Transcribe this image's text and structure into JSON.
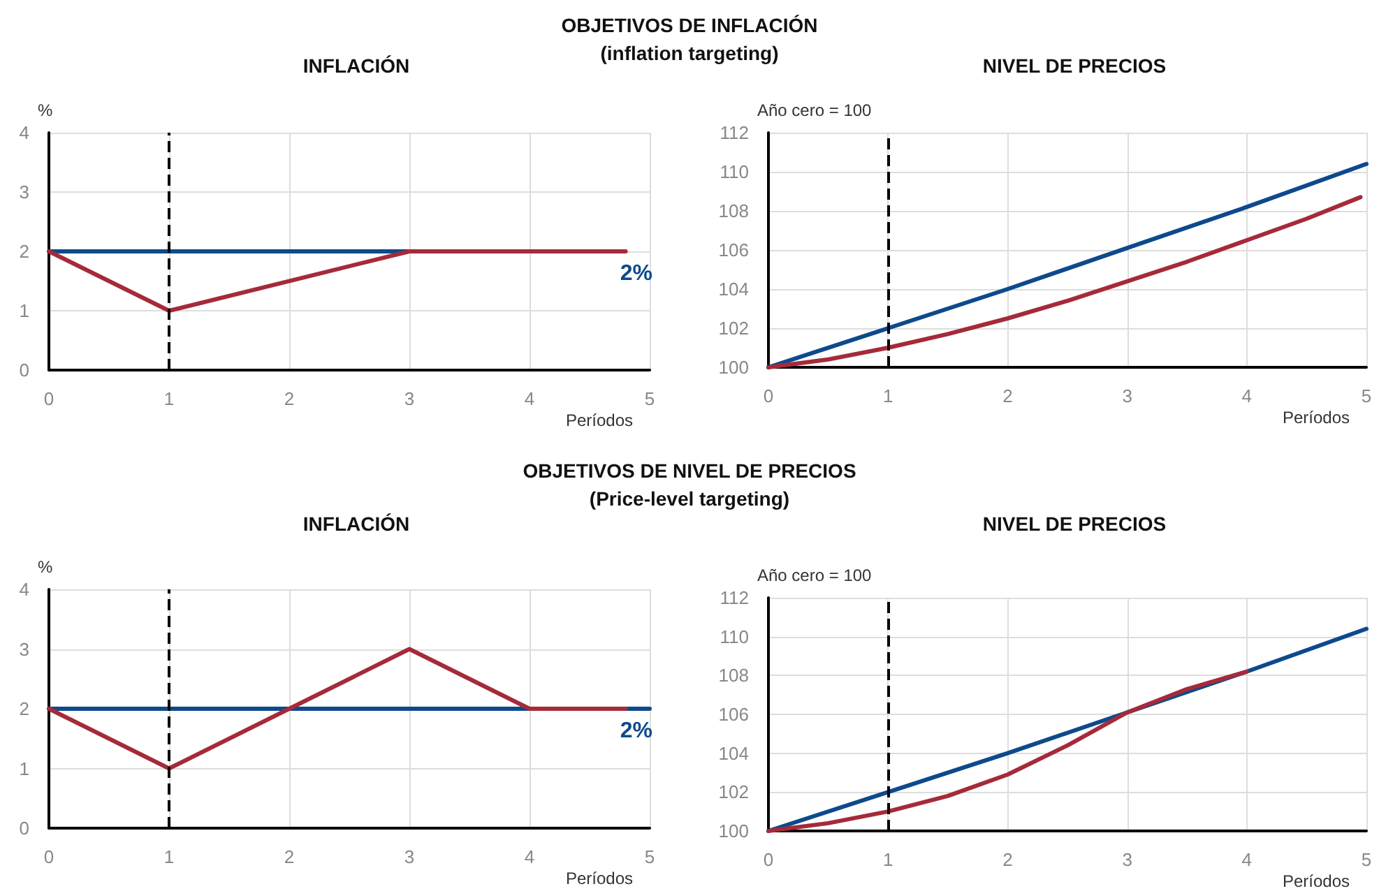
{
  "chart_data": [
    {
      "type": "line",
      "title": "INFLACIÓN",
      "annotations": [
        "OBJETIVOS DE INFLACIÓN\n(inflation targeting)",
        "2%"
      ],
      "xlabel": "Períodos",
      "ylabel": "%",
      "xlim": [
        0,
        5
      ],
      "xticks": [
        0,
        1,
        2,
        3,
        4,
        5
      ],
      "ylim": [
        0,
        4
      ],
      "yticks": [
        0,
        1,
        2,
        3,
        4
      ],
      "grid": true,
      "line_style": "solid",
      "ref_lines": [
        {
          "axis": "x",
          "value": 1,
          "color": "#000000",
          "line_style": "dashed"
        }
      ],
      "series": [
        {
          "color": "#0d4a8c",
          "x": [
            0,
            3
          ],
          "values": [
            2,
            2
          ]
        },
        {
          "color": "#a52a3a",
          "x": [
            0,
            1,
            3,
            4.8
          ],
          "values": [
            2,
            1,
            2,
            2
          ]
        }
      ]
    },
    {
      "type": "line",
      "title": "NIVEL DE PRECIOS",
      "xlabel": "Períodos",
      "ylabel": "Año cero = 100",
      "xlim": [
        0,
        5
      ],
      "xticks": [
        0,
        1,
        2,
        3,
        4,
        5
      ],
      "ylim": [
        100,
        112
      ],
      "yticks": [
        100,
        102,
        104,
        106,
        108,
        110,
        112
      ],
      "grid": true,
      "line_style": "solid",
      "ref_lines": [
        {
          "axis": "x",
          "value": 1,
          "color": "#000000",
          "line_style": "dashed"
        }
      ],
      "series": [
        {
          "color": "#0d4a8c",
          "x": [
            0,
            1,
            2,
            3,
            4,
            5
          ],
          "values": [
            100,
            102,
            104,
            106.1,
            108.2,
            110.4
          ]
        },
        {
          "color": "#a52a3a",
          "x": [
            0,
            0.5,
            1,
            1.5,
            2,
            2.5,
            3,
            3.5,
            4,
            4.5,
            4.95
          ],
          "values": [
            100,
            100.4,
            101,
            101.7,
            102.5,
            103.4,
            104.4,
            105.4,
            106.5,
            107.6,
            108.7
          ]
        }
      ]
    },
    {
      "type": "line",
      "title": "INFLACIÓN",
      "annotations": [
        "OBJETIVOS DE NIVEL DE PRECIOS\n(Price-level targeting)",
        "2%"
      ],
      "xlabel": "Períodos",
      "ylabel": "%",
      "xlim": [
        0,
        5
      ],
      "xticks": [
        0,
        1,
        2,
        3,
        4,
        5
      ],
      "ylim": [
        0,
        4
      ],
      "yticks": [
        0,
        1,
        2,
        3,
        4
      ],
      "grid": true,
      "line_style": "solid",
      "ref_lines": [
        {
          "axis": "x",
          "value": 1,
          "color": "#000000",
          "line_style": "dashed"
        }
      ],
      "series": [
        {
          "color": "#0d4a8c",
          "x": [
            0,
            5
          ],
          "values": [
            2,
            2
          ]
        },
        {
          "color": "#a52a3a",
          "x": [
            0,
            1,
            2,
            3,
            4,
            4.8
          ],
          "values": [
            2,
            1,
            2,
            3,
            2,
            2
          ]
        }
      ]
    },
    {
      "type": "line",
      "title": "NIVEL DE PRECIOS",
      "xlabel": "Períodos",
      "ylabel": "Año cero = 100",
      "xlim": [
        0,
        5
      ],
      "xticks": [
        0,
        1,
        2,
        3,
        4,
        5
      ],
      "ylim": [
        100,
        112
      ],
      "yticks": [
        100,
        102,
        104,
        106,
        108,
        110,
        112
      ],
      "grid": true,
      "line_style": "solid",
      "ref_lines": [
        {
          "axis": "x",
          "value": 1,
          "color": "#000000",
          "line_style": "dashed"
        }
      ],
      "series": [
        {
          "color": "#0d4a8c",
          "x": [
            0,
            1,
            2,
            3,
            4,
            5
          ],
          "values": [
            100,
            102,
            104,
            106.1,
            108.2,
            110.4
          ]
        },
        {
          "color": "#a52a3a",
          "x": [
            0,
            0.5,
            1,
            1.5,
            2,
            2.5,
            3,
            3.5,
            4
          ],
          "values": [
            100,
            100.4,
            101,
            101.8,
            102.9,
            104.4,
            106.1,
            107.3,
            108.2
          ]
        }
      ]
    }
  ]
}
